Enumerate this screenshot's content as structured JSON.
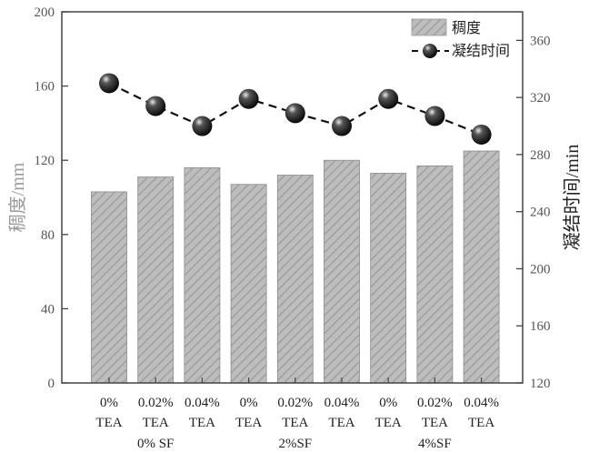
{
  "chart_data": {
    "type": "bar",
    "categories": [
      "0%\nTEA",
      "0.02%\nTEA",
      "0.04%\nTEA",
      "0%\nTEA",
      "0.02%\nTEA",
      "0.04%\nTEA",
      "0%\nTEA",
      "0.02%\nTEA",
      "0.04%\nTEA"
    ],
    "category_lines": [
      [
        "0%",
        "TEA"
      ],
      [
        "0.02%",
        "TEA"
      ],
      [
        "0.04%",
        "TEA"
      ],
      [
        "0%",
        "TEA"
      ],
      [
        "0.02%",
        "TEA"
      ],
      [
        "0.04%",
        "TEA"
      ],
      [
        "0%",
        "TEA"
      ],
      [
        "0.02%",
        "TEA"
      ],
      [
        "0.04%",
        "TEA"
      ]
    ],
    "groups": [
      "0% SF",
      "2%SF",
      "4%SF"
    ],
    "series": [
      {
        "name": "稠度",
        "type": "bar",
        "axis": "left",
        "values": [
          103,
          111,
          116,
          107,
          112,
          120,
          113,
          117,
          125
        ]
      },
      {
        "name": "凝结时间",
        "type": "line",
        "axis": "right",
        "values": [
          330,
          314,
          300,
          319,
          309,
          300,
          319,
          307,
          294
        ]
      }
    ],
    "ylabel": "稠度/mm",
    "y2label": "凝结时间/min",
    "ylim": [
      0,
      200
    ],
    "y2lim": [
      120,
      380
    ],
    "yticks": [
      0,
      40,
      80,
      120,
      160,
      200
    ],
    "y2ticks": [
      120,
      160,
      200,
      240,
      280,
      320,
      360
    ],
    "legend_position": "top-right",
    "colors": {
      "bar_fill": "#b5b5b5",
      "bar_stripe": "#8f8f8f",
      "line": "#111111",
      "marker": "#1a1a1a"
    }
  }
}
